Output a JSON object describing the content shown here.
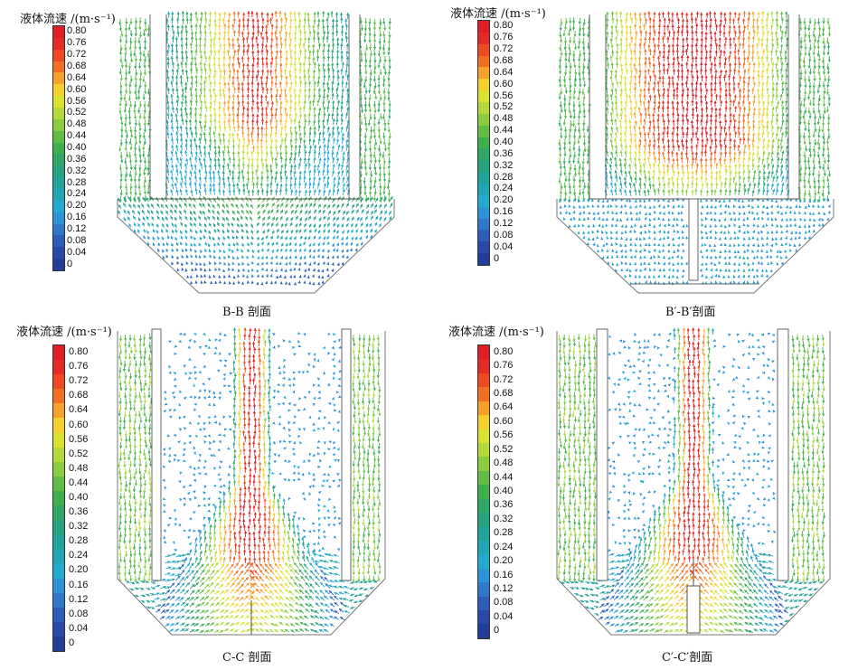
{
  "colorbar": {
    "title": "液体流速 /(m·s⁻¹)",
    "ticks": [
      "0.80",
      "0.76",
      "0.72",
      "0.68",
      "0.64",
      "0.60",
      "0.56",
      "0.52",
      "0.48",
      "0.44",
      "0.40",
      "0.36",
      "0.32",
      "0.28",
      "0.24",
      "0.20",
      "0.16",
      "0.12",
      "0.08",
      "0.04",
      "0"
    ],
    "colors": [
      "#e01e26",
      "#e62a24",
      "#ee4a22",
      "#f27024",
      "#f6a12a",
      "#f4d02e",
      "#d9e22c",
      "#b3d93a",
      "#8acb3f",
      "#5fbd45",
      "#3fb04e",
      "#2fa866",
      "#27a27f",
      "#22a39a",
      "#1fa7b6",
      "#24a9d3",
      "#2d93d6",
      "#2f78c8",
      "#2c5db8",
      "#2948a8",
      "#233e98"
    ]
  },
  "panels": [
    {
      "id": "B-B",
      "caption": "B-B 剖面"
    },
    {
      "id": "B'-B'",
      "caption": "B′-B′剖面"
    },
    {
      "id": "C-C",
      "caption": "C-C 剖面"
    },
    {
      "id": "C'-C'",
      "caption": "C′-C′剖面"
    }
  ]
}
